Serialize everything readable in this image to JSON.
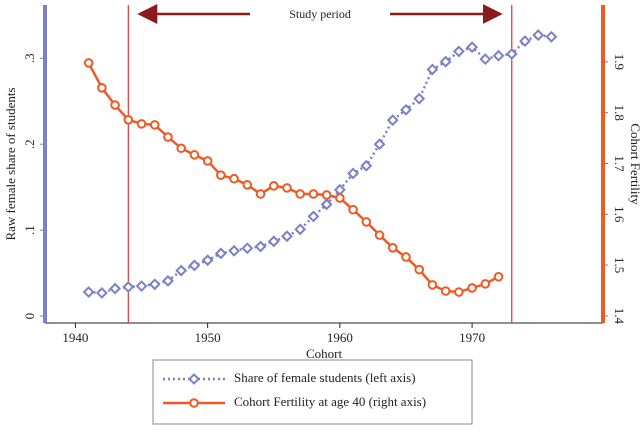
{
  "chart_data": {
    "type": "line",
    "xlabel": "Cohort",
    "ylabel": "Raw female share of students",
    "y2label": "Cohort Fertility",
    "annotation": "Study period",
    "vlines": [
      1944,
      1973
    ],
    "vline_color": "#e0303a",
    "annotation_color": "#8b1a1a",
    "x": [
      1941,
      1942,
      1943,
      1944,
      1945,
      1946,
      1947,
      1948,
      1949,
      1950,
      1951,
      1952,
      1953,
      1954,
      1955,
      1956,
      1957,
      1958,
      1959,
      1960,
      1961,
      1962,
      1963,
      1964,
      1965,
      1966,
      1967,
      1968,
      1969,
      1970,
      1971,
      1972,
      1973,
      1974,
      1975,
      1976
    ],
    "series": [
      {
        "name": "Share of female students (left axis)",
        "color": "#7b80c8",
        "marker": "diamond",
        "style": "dotted",
        "values": [
          0.028,
          0.027,
          0.032,
          0.034,
          0.035,
          0.037,
          0.041,
          0.053,
          0.059,
          0.065,
          0.073,
          0.076,
          0.079,
          0.081,
          0.087,
          0.093,
          0.101,
          0.116,
          0.13,
          0.147,
          0.166,
          0.175,
          0.2,
          0.228,
          0.24,
          0.253,
          0.287,
          0.296,
          0.308,
          0.313,
          0.299,
          0.303,
          0.305,
          0.32,
          0.327,
          0.325
        ]
      },
      {
        "name": "Cohort Fertility at age 40 (right axis)",
        "color": "#ee5a24",
        "marker": "circle",
        "style": "solid",
        "axis": "y2",
        "values": [
          1.898,
          1.849,
          1.815,
          1.786,
          1.778,
          1.776,
          1.752,
          1.73,
          1.717,
          1.705,
          1.677,
          1.67,
          1.658,
          1.64,
          1.656,
          1.652,
          1.64,
          1.64,
          1.638,
          1.632,
          1.609,
          1.585,
          1.559,
          1.534,
          1.516,
          1.491,
          1.461,
          1.449,
          1.447,
          1.455,
          1.463,
          1.477,
          null,
          null,
          null,
          null
        ]
      }
    ],
    "xlim": [
      1937.7,
      1979.9
    ],
    "xticks": [
      1940,
      1950,
      1960,
      1970
    ],
    "ylim": [
      -0.008,
      0.362
    ],
    "yticks": [
      0,
      {
        "value": 0.1,
        "label": ".1"
      },
      {
        "value": 0.2,
        "label": ".2"
      },
      {
        "value": 0.3,
        "label": ".3"
      }
    ],
    "y2lim": [
      1.386,
      2.012
    ],
    "y2ticks": [
      1.4,
      1.5,
      1.6,
      1.7,
      1.8,
      1.9
    ]
  }
}
